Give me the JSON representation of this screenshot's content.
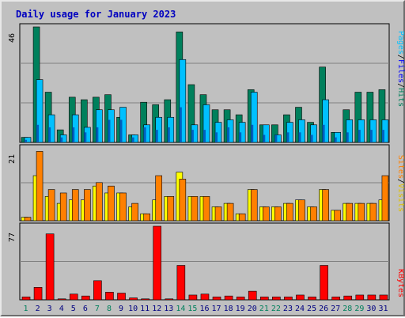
{
  "title": "Daily usage for January 2023",
  "colors": {
    "hits": "#00805c",
    "files": "#00c0ff",
    "pages": "#00e0ff",
    "visits": "#ffff00",
    "sites": "#ff8000",
    "kbytes": "#ff0000",
    "title": "#0000c0",
    "weekend": "#00805c",
    "weekday": "#000080"
  },
  "right_labels": {
    "panel1": [
      "Pages",
      "/",
      "Files",
      "/",
      "Hits"
    ],
    "panel1_colors": [
      "#00c0ff",
      "#000000",
      "#0000ff",
      "#000000",
      "#00805c"
    ],
    "panel2": [
      "Sites",
      "/",
      "Visits"
    ],
    "panel2_colors": [
      "#ff8000",
      "#000000",
      "#e0c000"
    ],
    "panel3": [
      "KBytes"
    ],
    "panel3_colors": [
      "#ff0000"
    ]
  },
  "chart_data": [
    {
      "type": "bar",
      "panel": "hits_files_pages",
      "ymax_label": "46",
      "ylim": [
        0,
        46
      ],
      "categories": [
        "1",
        "2",
        "3",
        "4",
        "5",
        "6",
        "7",
        "8",
        "9",
        "10",
        "11",
        "12",
        "13",
        "14",
        "15",
        "16",
        "17",
        "18",
        "19",
        "20",
        "21",
        "22",
        "23",
        "24",
        "25",
        "26",
        "27",
        "28",
        "29",
        "30",
        "31"
      ],
      "weekend_days": [
        1,
        7,
        8,
        14,
        15,
        21,
        22,
        28,
        29
      ],
      "series": [
        {
          "name": "Hits",
          "values": [
            2,
            46,
            20,
            5,
            18,
            17,
            18,
            19,
            10,
            3,
            16,
            15,
            17,
            44,
            23,
            19,
            13,
            13,
            11,
            21,
            7,
            7,
            11,
            14,
            8,
            30,
            4,
            13,
            20,
            20,
            21
          ]
        },
        {
          "name": "Files",
          "values": [
            2,
            25,
            11,
            3,
            11,
            6,
            13,
            13,
            14,
            3,
            7,
            10,
            10,
            33,
            7,
            15,
            8,
            9,
            8,
            20,
            7,
            3,
            8,
            9,
            7,
            17,
            4,
            9,
            9,
            9,
            9
          ]
        },
        {
          "name": "Pages",
          "values": [
            1,
            7,
            6,
            2,
            6,
            4,
            6,
            9,
            9,
            2,
            6,
            5,
            6,
            14,
            5,
            5,
            4,
            6,
            4,
            7,
            3,
            3,
            4,
            4,
            3,
            7,
            2,
            4,
            5,
            5,
            5
          ]
        }
      ]
    },
    {
      "type": "bar",
      "panel": "visits_sites",
      "ymax_label": "21",
      "ylim": [
        0,
        21
      ],
      "categories": [
        "1",
        "2",
        "3",
        "4",
        "5",
        "6",
        "7",
        "8",
        "9",
        "10",
        "11",
        "12",
        "13",
        "14",
        "15",
        "16",
        "17",
        "18",
        "19",
        "20",
        "21",
        "22",
        "23",
        "24",
        "25",
        "26",
        "27",
        "28",
        "29",
        "30",
        "31"
      ],
      "series": [
        {
          "name": "Visits",
          "values": [
            1,
            13,
            7,
            5,
            6,
            6,
            10,
            8,
            8,
            4,
            2,
            6,
            7,
            14,
            7,
            7,
            4,
            5,
            2,
            9,
            4,
            4,
            5,
            6,
            4,
            9,
            3,
            5,
            5,
            5,
            6
          ]
        },
        {
          "name": "Sites",
          "values": [
            1,
            20,
            9,
            8,
            9,
            9,
            11,
            10,
            8,
            5,
            2,
            13,
            7,
            12,
            7,
            7,
            4,
            5,
            2,
            9,
            4,
            4,
            5,
            6,
            4,
            9,
            3,
            5,
            5,
            5,
            13
          ]
        }
      ]
    },
    {
      "type": "bar",
      "panel": "kbytes",
      "ymax_label": "77",
      "ylim": [
        0,
        77
      ],
      "categories": [
        "1",
        "2",
        "3",
        "4",
        "5",
        "6",
        "7",
        "8",
        "9",
        "10",
        "11",
        "12",
        "13",
        "14",
        "15",
        "16",
        "17",
        "18",
        "19",
        "20",
        "21",
        "22",
        "23",
        "24",
        "25",
        "26",
        "27",
        "28",
        "29",
        "30",
        "31"
      ],
      "series": [
        {
          "name": "KBytes",
          "values": [
            3,
            13,
            69,
            1,
            6,
            4,
            20,
            8,
            7,
            2,
            1,
            77,
            1,
            36,
            5,
            6,
            3,
            4,
            3,
            9,
            3,
            3,
            3,
            5,
            3,
            36,
            3,
            4,
            5,
            5,
            5
          ]
        }
      ]
    }
  ]
}
